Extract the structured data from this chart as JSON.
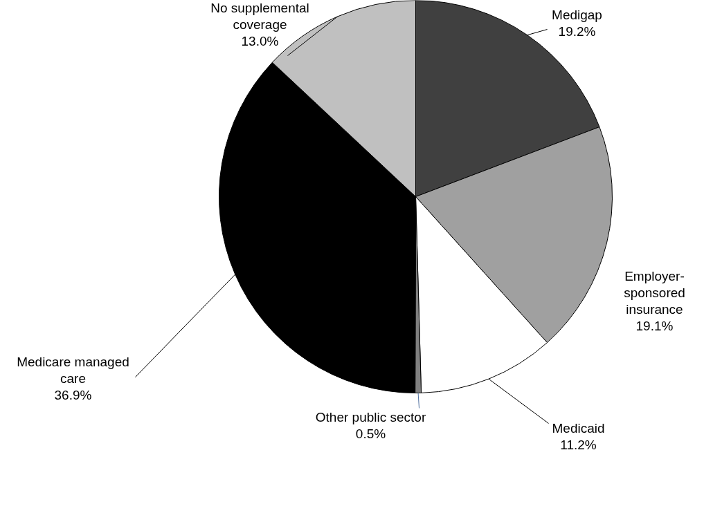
{
  "chart_data": {
    "type": "pie",
    "categories": [
      "Medigap",
      "Employer-sponsored insurance",
      "Medicaid",
      "Other public sector",
      "Medicare managed care",
      "No supplemental coverage"
    ],
    "values": [
      19.2,
      19.1,
      11.2,
      0.5,
      36.9,
      13.0
    ],
    "value_labels": [
      "19.2%",
      "19.1%",
      "11.2%",
      "0.5%",
      "36.9%",
      "13.0%"
    ],
    "colors": [
      "#404040",
      "#a0a0a0",
      "#ffffff",
      "#808080",
      "#000000",
      "#c0c0c0"
    ]
  }
}
